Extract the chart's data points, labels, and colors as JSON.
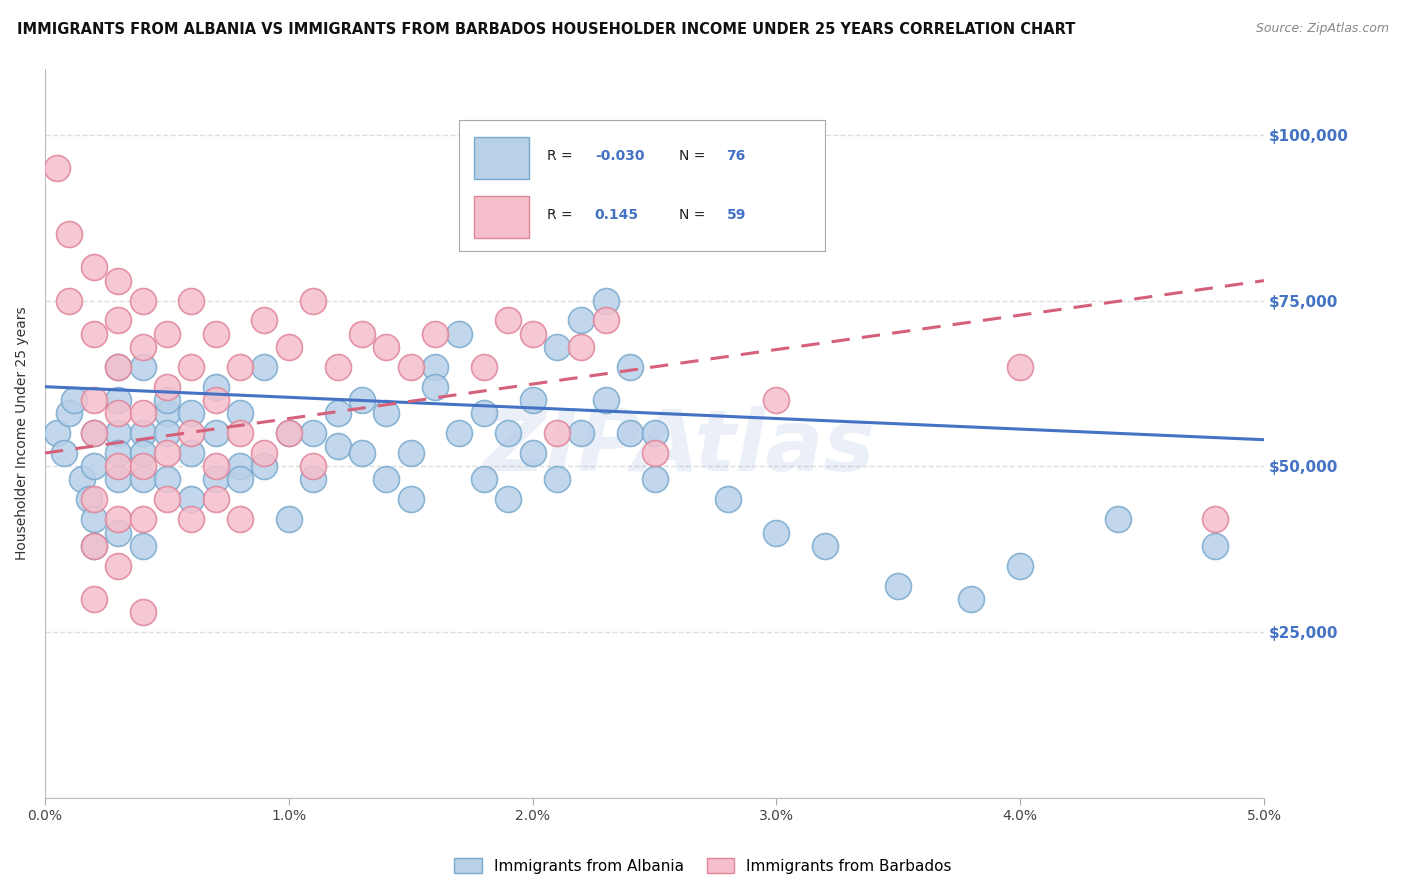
{
  "title": "IMMIGRANTS FROM ALBANIA VS IMMIGRANTS FROM BARBADOS HOUSEHOLDER INCOME UNDER 25 YEARS CORRELATION CHART",
  "source": "Source: ZipAtlas.com",
  "ylabel": "Householder Income Under 25 years",
  "xlim": [
    0.0,
    0.05
  ],
  "ylim": [
    0,
    110000
  ],
  "yticks": [
    0,
    25000,
    50000,
    75000,
    100000
  ],
  "ytick_labels": [
    "",
    "$25,000",
    "$50,000",
    "$75,000",
    "$100,000"
  ],
  "xtick_labels": [
    "0.0%",
    "1.0%",
    "2.0%",
    "3.0%",
    "4.0%",
    "5.0%"
  ],
  "xticks": [
    0.0,
    0.01,
    0.02,
    0.03,
    0.04,
    0.05
  ],
  "albania_fill": "#b8d0e8",
  "albania_edge": "#7aaace",
  "barbados_fill": "#f5bfcc",
  "barbados_edge": "#e0849a",
  "albania_line_color": "#4472c4",
  "barbados_line_color": "#d4607a",
  "R_albania": -0.03,
  "N_albania": 76,
  "R_barbados": 0.145,
  "N_barbados": 59,
  "legend_label_albania": "Immigrants from Albania",
  "legend_label_barbados": "Immigrants from Barbados",
  "watermark": "ZIPAtlas",
  "grid_color": "#dddddd",
  "background_color": "#ffffff",
  "title_fontsize": 10.5,
  "axis_label_fontsize": 10,
  "tick_fontsize": 10,
  "albania_scatter": [
    [
      0.0005,
      55000
    ],
    [
      0.0008,
      52000
    ],
    [
      0.001,
      58000
    ],
    [
      0.0012,
      60000
    ],
    [
      0.0015,
      48000
    ],
    [
      0.0018,
      45000
    ],
    [
      0.002,
      50000
    ],
    [
      0.002,
      55000
    ],
    [
      0.002,
      42000
    ],
    [
      0.002,
      38000
    ],
    [
      0.003,
      55000
    ],
    [
      0.003,
      48000
    ],
    [
      0.003,
      52000
    ],
    [
      0.003,
      60000
    ],
    [
      0.003,
      65000
    ],
    [
      0.003,
      40000
    ],
    [
      0.004,
      55000
    ],
    [
      0.004,
      52000
    ],
    [
      0.004,
      48000
    ],
    [
      0.004,
      65000
    ],
    [
      0.004,
      38000
    ],
    [
      0.005,
      58000
    ],
    [
      0.005,
      48000
    ],
    [
      0.005,
      55000
    ],
    [
      0.005,
      60000
    ],
    [
      0.006,
      52000
    ],
    [
      0.006,
      58000
    ],
    [
      0.006,
      45000
    ],
    [
      0.007,
      55000
    ],
    [
      0.007,
      48000
    ],
    [
      0.007,
      62000
    ],
    [
      0.008,
      50000
    ],
    [
      0.008,
      58000
    ],
    [
      0.008,
      48000
    ],
    [
      0.009,
      65000
    ],
    [
      0.009,
      50000
    ],
    [
      0.01,
      55000
    ],
    [
      0.01,
      42000
    ],
    [
      0.011,
      55000
    ],
    [
      0.011,
      48000
    ],
    [
      0.012,
      53000
    ],
    [
      0.012,
      58000
    ],
    [
      0.013,
      60000
    ],
    [
      0.013,
      52000
    ],
    [
      0.014,
      58000
    ],
    [
      0.014,
      48000
    ],
    [
      0.015,
      52000
    ],
    [
      0.015,
      45000
    ],
    [
      0.016,
      65000
    ],
    [
      0.016,
      62000
    ],
    [
      0.017,
      70000
    ],
    [
      0.017,
      55000
    ],
    [
      0.018,
      48000
    ],
    [
      0.018,
      58000
    ],
    [
      0.019,
      55000
    ],
    [
      0.019,
      45000
    ],
    [
      0.02,
      60000
    ],
    [
      0.02,
      52000
    ],
    [
      0.021,
      68000
    ],
    [
      0.021,
      48000
    ],
    [
      0.022,
      72000
    ],
    [
      0.022,
      55000
    ],
    [
      0.023,
      75000
    ],
    [
      0.023,
      60000
    ],
    [
      0.024,
      55000
    ],
    [
      0.024,
      65000
    ],
    [
      0.025,
      48000
    ],
    [
      0.025,
      55000
    ],
    [
      0.028,
      45000
    ],
    [
      0.03,
      40000
    ],
    [
      0.032,
      38000
    ],
    [
      0.035,
      32000
    ],
    [
      0.038,
      30000
    ],
    [
      0.04,
      35000
    ],
    [
      0.044,
      42000
    ],
    [
      0.048,
      38000
    ]
  ],
  "barbados_scatter": [
    [
      0.0005,
      95000
    ],
    [
      0.001,
      85000
    ],
    [
      0.001,
      75000
    ],
    [
      0.002,
      80000
    ],
    [
      0.002,
      70000
    ],
    [
      0.002,
      60000
    ],
    [
      0.002,
      55000
    ],
    [
      0.002,
      45000
    ],
    [
      0.002,
      38000
    ],
    [
      0.002,
      30000
    ],
    [
      0.003,
      78000
    ],
    [
      0.003,
      72000
    ],
    [
      0.003,
      65000
    ],
    [
      0.003,
      58000
    ],
    [
      0.003,
      50000
    ],
    [
      0.003,
      42000
    ],
    [
      0.003,
      35000
    ],
    [
      0.004,
      75000
    ],
    [
      0.004,
      68000
    ],
    [
      0.004,
      58000
    ],
    [
      0.004,
      50000
    ],
    [
      0.004,
      42000
    ],
    [
      0.004,
      28000
    ],
    [
      0.005,
      70000
    ],
    [
      0.005,
      62000
    ],
    [
      0.005,
      52000
    ],
    [
      0.005,
      45000
    ],
    [
      0.006,
      75000
    ],
    [
      0.006,
      65000
    ],
    [
      0.006,
      55000
    ],
    [
      0.006,
      42000
    ],
    [
      0.007,
      70000
    ],
    [
      0.007,
      60000
    ],
    [
      0.007,
      50000
    ],
    [
      0.007,
      45000
    ],
    [
      0.008,
      65000
    ],
    [
      0.008,
      55000
    ],
    [
      0.008,
      42000
    ],
    [
      0.009,
      72000
    ],
    [
      0.009,
      52000
    ],
    [
      0.01,
      68000
    ],
    [
      0.01,
      55000
    ],
    [
      0.011,
      75000
    ],
    [
      0.011,
      50000
    ],
    [
      0.012,
      65000
    ],
    [
      0.013,
      70000
    ],
    [
      0.014,
      68000
    ],
    [
      0.015,
      65000
    ],
    [
      0.016,
      70000
    ],
    [
      0.018,
      65000
    ],
    [
      0.019,
      72000
    ],
    [
      0.02,
      70000
    ],
    [
      0.021,
      55000
    ],
    [
      0.022,
      68000
    ],
    [
      0.023,
      72000
    ],
    [
      0.025,
      52000
    ],
    [
      0.03,
      60000
    ],
    [
      0.04,
      65000
    ],
    [
      0.048,
      42000
    ]
  ],
  "albania_trendline": [
    0.0,
    62000,
    0.05,
    54000
  ],
  "barbados_trendline": [
    0.0,
    52000,
    0.05,
    78000
  ]
}
